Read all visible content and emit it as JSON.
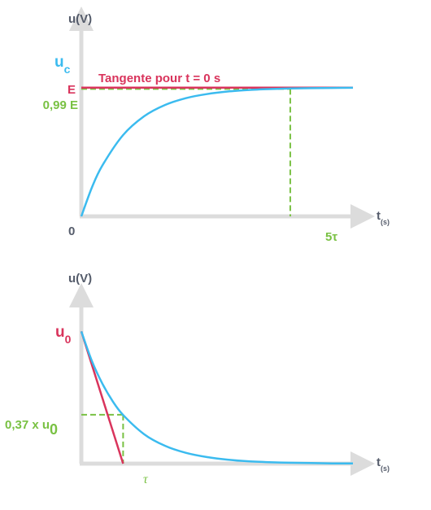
{
  "colors": {
    "axis": "#dcdcdc",
    "text": "#555c6b",
    "curve": "#3bbbef",
    "tangent": "#d9345c",
    "guide": "#79c143"
  },
  "chart_data": [
    {
      "type": "line",
      "title": "",
      "ylabel": "u(V)",
      "xlabel": "t",
      "xlabel_sub": "(s)",
      "origin_label": "0",
      "curve_label": "u",
      "curve_label_sub": "c",
      "tangent_label": "Tangente pour t = 0 s",
      "e_label": "E",
      "level_label": "0,99 E",
      "time_label": "5τ",
      "series": [
        {
          "x": [
            0,
            0.25,
            0.5,
            1,
            1.5,
            2,
            2.5,
            3,
            3.5,
            4,
            4.5,
            5,
            5.5,
            6,
            6.5
          ],
          "y": [
            0,
            0.221,
            0.393,
            0.632,
            0.777,
            0.865,
            0.918,
            0.95,
            0.97,
            0.982,
            0.989,
            0.993,
            0.996,
            0.998,
            0.999
          ]
        }
      ],
      "tangent_value": 1,
      "level_value": 0.99,
      "level_time": 5,
      "xlim": [
        0,
        7.2
      ],
      "ylim": [
        0,
        1.15
      ]
    },
    {
      "type": "line",
      "title": "",
      "ylabel": "u(V)",
      "xlabel": "t",
      "xlabel_sub": "(s)",
      "u0_label": "u",
      "u0_label_sub": "0",
      "level_label": "0,37 x u",
      "level_label_sub": "0",
      "time_label": "τ",
      "series": [
        {
          "x": [
            0,
            0.25,
            0.5,
            0.75,
            1,
            1.5,
            2,
            2.5,
            3,
            3.5,
            4,
            4.5,
            5,
            5.5,
            6,
            6.5
          ],
          "y": [
            1,
            0.779,
            0.607,
            0.472,
            0.368,
            0.223,
            0.135,
            0.082,
            0.05,
            0.03,
            0.018,
            0.011,
            0.007,
            0.004,
            0.002,
            0.0015
          ]
        }
      ],
      "tangent_end": 1,
      "level_value": 0.37,
      "level_time": 1,
      "xlim": [
        0,
        7.2
      ],
      "ylim": [
        0,
        1.15
      ]
    }
  ]
}
